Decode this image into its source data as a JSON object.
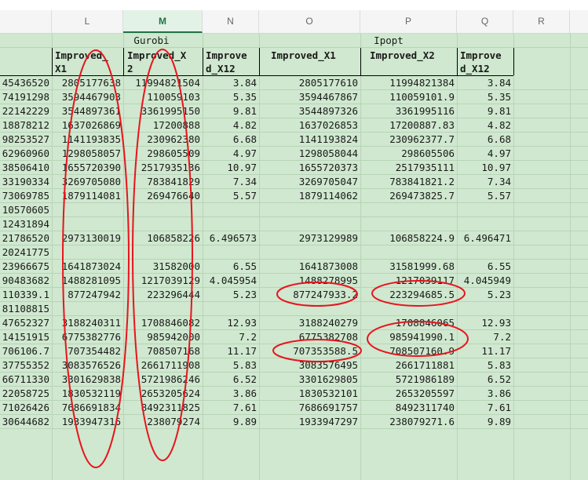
{
  "columns": [
    "L",
    "M",
    "N",
    "O",
    "P",
    "Q",
    "R"
  ],
  "selected_column": "M",
  "groups": {
    "gurobi": "Gurobi",
    "ipopt": "Ipopt"
  },
  "headers": {
    "L": "Improved_\nX1",
    "M": "Improved_X\n2",
    "N": "Improve\nd_X12",
    "O": "Improved_X1",
    "P": "Improved_X2",
    "Q": "Improve\nd_X12"
  },
  "rows": [
    {
      "K": "45436520",
      "L": "2805177638",
      "M": "11994821504",
      "N": "3.84",
      "O": "2805177610",
      "P": "11994821384",
      "Q": "3.84"
    },
    {
      "K": "74191298",
      "L": "3594467903",
      "M": "110059103",
      "N": "5.35",
      "O": "3594467867",
      "P": "110059101.9",
      "Q": "5.35"
    },
    {
      "K": "22142229",
      "L": "3544897361",
      "M": "3361995150",
      "N": "9.81",
      "O": "3544897326",
      "P": "3361995116",
      "Q": "9.81"
    },
    {
      "K": "18878212",
      "L": "1637026869",
      "M": "17200888",
      "N": "4.82",
      "O": "1637026853",
      "P": "17200887.83",
      "Q": "4.82"
    },
    {
      "K": "98253527",
      "L": "1141193835",
      "M": "230962380",
      "N": "6.68",
      "O": "1141193824",
      "P": "230962377.7",
      "Q": "6.68"
    },
    {
      "K": "62960960",
      "L": "1298058057",
      "M": "298605509",
      "N": "4.97",
      "O": "1298058044",
      "P": "298605506",
      "Q": "4.97"
    },
    {
      "K": "38506410",
      "L": "1655720390",
      "M": "2517935136",
      "N": "10.97",
      "O": "1655720373",
      "P": "2517935111",
      "Q": "10.97"
    },
    {
      "K": "33190334",
      "L": "3269705080",
      "M": "783841829",
      "N": "7.34",
      "O": "3269705047",
      "P": "783841821.2",
      "Q": "7.34"
    },
    {
      "K": "73069785",
      "L": "1879114081",
      "M": "269476640",
      "N": "5.57",
      "O": "1879114062",
      "P": "269473825.7",
      "Q": "5.57"
    },
    {
      "K": "10570605",
      "L": "",
      "M": "",
      "N": "",
      "O": "",
      "P": "",
      "Q": ""
    },
    {
      "K": "12431894",
      "L": "",
      "M": "",
      "N": "",
      "O": "",
      "P": "",
      "Q": ""
    },
    {
      "K": "21786520",
      "L": "2973130019",
      "M": "106858226",
      "N": "6.496573",
      "O": "2973129989",
      "P": "106858224.9",
      "Q": "6.496471"
    },
    {
      "K": "20241775",
      "L": "",
      "M": "",
      "N": "",
      "O": "",
      "P": "",
      "Q": ""
    },
    {
      "K": "23966675",
      "L": "1641873024",
      "M": "31582000",
      "N": "6.55",
      "O": "1641873008",
      "P": "31581999.68",
      "Q": "6.55"
    },
    {
      "K": "90483682",
      "L": "1488281095",
      "M": "1217039129",
      "N": "4.045954",
      "O": "1488278995",
      "P": "1217039117",
      "Q": "4.045949"
    },
    {
      "K": "110339.1",
      "L": "877247942",
      "M": "223296444",
      "N": "5.23",
      "O": "877247933.2",
      "P": "223294685.5",
      "Q": "5.23"
    },
    {
      "K": "81108815",
      "L": "",
      "M": "",
      "N": "",
      "O": "",
      "P": "",
      "Q": ""
    },
    {
      "K": "47652327",
      "L": "3188240311",
      "M": "1708846082",
      "N": "12.93",
      "O": "3188240279",
      "P": "1708846065",
      "Q": "12.93"
    },
    {
      "K": "14151915",
      "L": "6775382776",
      "M": "985942000",
      "N": "7.2",
      "O": "6775382708",
      "P": "985941990.1",
      "Q": "7.2"
    },
    {
      "K": "706106.7",
      "L": "707354482",
      "M": "708507168",
      "N": "11.17",
      "O": "707353588.5",
      "P": "708507160.9",
      "Q": "11.17"
    },
    {
      "K": "37755352",
      "L": "3083576526",
      "M": "2661711908",
      "N": "5.83",
      "O": "3083576495",
      "P": "2661711881",
      "Q": "5.83"
    },
    {
      "K": "66711330",
      "L": "3301629838",
      "M": "5721986246",
      "N": "6.52",
      "O": "3301629805",
      "P": "5721986189",
      "Q": "6.52"
    },
    {
      "K": "22058725",
      "L": "1830532119",
      "M": "2653205624",
      "N": "3.86",
      "O": "1830532101",
      "P": "2653205597",
      "Q": "3.86"
    },
    {
      "K": "71026426",
      "L": "7686691834",
      "M": "8492311825",
      "N": "7.61",
      "O": "7686691757",
      "P": "8492311740",
      "Q": "7.61"
    },
    {
      "K": "30644682",
      "L": "1933947316",
      "M": "238079274",
      "N": "9.89",
      "O": "1933947297",
      "P": "238079271.6",
      "Q": "9.89"
    }
  ],
  "colors": {
    "grid_fill": "#cfe8cf",
    "annotation": "#e8141e",
    "selected_header": "#217346"
  }
}
